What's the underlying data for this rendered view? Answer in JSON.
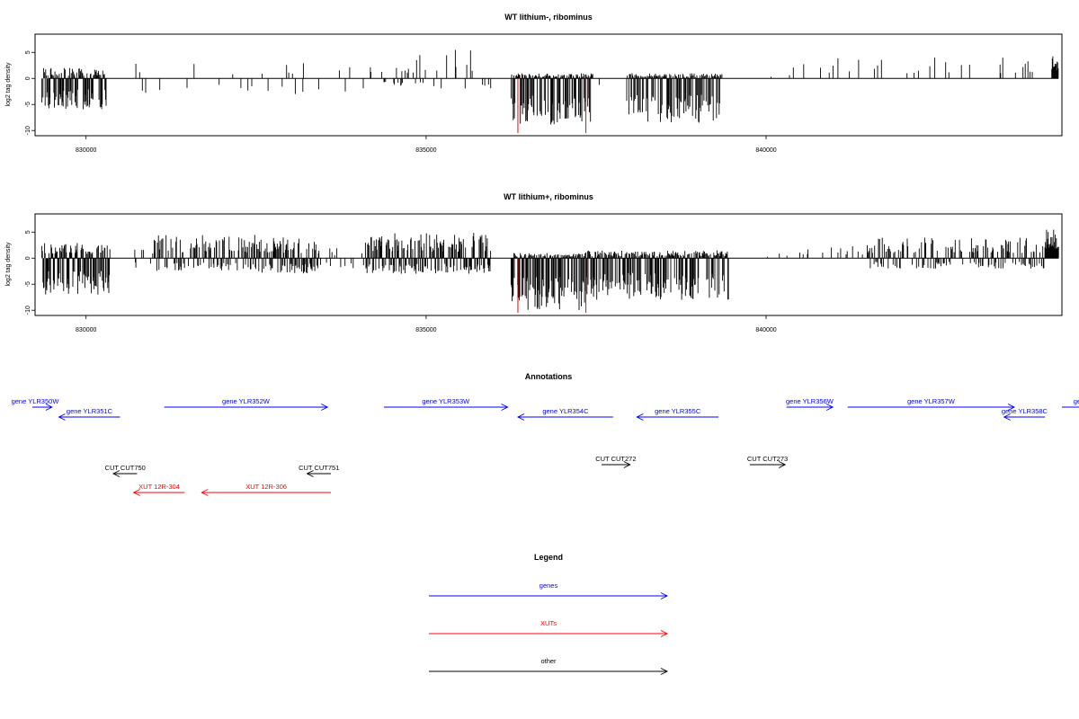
{
  "colors": {
    "genes": "#0000ff",
    "xuts": "#ff0000",
    "other": "#000000",
    "marker": "#ff0000"
  },
  "chart_data": [
    {
      "type": "bar",
      "title": "WT lithium-, ribominus",
      "ylabel": "log2 tag density",
      "xlim": [
        829250,
        844350
      ],
      "ylim": [
        -11,
        8.5
      ],
      "xticks": [
        {
          "v": 830000,
          "t": "830000"
        },
        {
          "v": 835000,
          "t": "835000"
        },
        {
          "v": 840000,
          "t": "840000"
        }
      ],
      "yticks": [
        {
          "v": 5,
          "t": "5"
        },
        {
          "v": 0,
          "t": "0"
        },
        {
          "v": -5,
          "t": "-5"
        },
        {
          "v": -10,
          "t": "-10"
        }
      ],
      "grid": false,
      "markers": [
        836350,
        837350
      ],
      "marker_extent": -10.5,
      "segments": [
        {
          "from": 829350,
          "to": 830300,
          "density": 0.9,
          "pos": 2,
          "neg": 6
        },
        {
          "from": 830700,
          "to": 834200,
          "density": 0.05,
          "pos": 3,
          "neg": 3
        },
        {
          "from": 834300,
          "to": 835150,
          "density": 0.25,
          "pos": 4.5,
          "neg": 1.5
        },
        {
          "from": 835150,
          "to": 835950,
          "density": 0.1,
          "pos": 5.5,
          "neg": 2
        },
        {
          "from": 836250,
          "to": 837450,
          "density": 0.95,
          "pos": 1,
          "neg": 9
        },
        {
          "from": 837450,
          "to": 837900,
          "density": 0.05,
          "pos": 1.5,
          "neg": 2
        },
        {
          "from": 837950,
          "to": 839350,
          "density": 0.9,
          "pos": 1,
          "neg": 8.5
        },
        {
          "from": 839400,
          "to": 840400,
          "density": 0.01,
          "pos": 1,
          "neg": 1
        },
        {
          "from": 840400,
          "to": 843650,
          "density": 0.05,
          "pos": 4,
          "neg": 1
        },
        {
          "from": 843650,
          "to": 844200,
          "density": 0.15,
          "pos": 4,
          "neg": 1
        },
        {
          "from": 844200,
          "to": 844300,
          "density": 1,
          "pos": 6,
          "neg": 0.5
        }
      ]
    },
    {
      "type": "bar",
      "title": "WT lithium+, ribominus",
      "ylabel": "log2 tag density",
      "xlim": [
        829250,
        844350
      ],
      "ylim": [
        -11,
        8.5
      ],
      "xticks": [
        {
          "v": 830000,
          "t": "830000"
        },
        {
          "v": 835000,
          "t": "835000"
        },
        {
          "v": 840000,
          "t": "840000"
        }
      ],
      "yticks": [
        {
          "v": 5,
          "t": "5"
        },
        {
          "v": 0,
          "t": "0"
        },
        {
          "v": -5,
          "t": "-5"
        },
        {
          "v": -10,
          "t": "-10"
        }
      ],
      "grid": false,
      "markers": [
        836350,
        837350
      ],
      "marker_extent": -10.5,
      "segments": [
        {
          "from": 829350,
          "to": 830350,
          "density": 0.95,
          "pos": 3,
          "neg": 7
        },
        {
          "from": 830700,
          "to": 831000,
          "density": 0.2,
          "pos": 2,
          "neg": 2
        },
        {
          "from": 831000,
          "to": 832500,
          "density": 0.6,
          "pos": 4.5,
          "neg": 2.5
        },
        {
          "from": 832500,
          "to": 833400,
          "density": 0.75,
          "pos": 4,
          "neg": 3
        },
        {
          "from": 833400,
          "to": 834100,
          "density": 0.2,
          "pos": 2,
          "neg": 2
        },
        {
          "from": 834100,
          "to": 835950,
          "density": 0.8,
          "pos": 5,
          "neg": 3
        },
        {
          "from": 836250,
          "to": 837350,
          "density": 1,
          "pos": 1,
          "neg": 10
        },
        {
          "from": 837350,
          "to": 839450,
          "density": 0.95,
          "pos": 1.5,
          "neg": 8
        },
        {
          "from": 839450,
          "to": 840400,
          "density": 0.02,
          "pos": 1,
          "neg": 1
        },
        {
          "from": 840400,
          "to": 841500,
          "density": 0.1,
          "pos": 2.5,
          "neg": 1
        },
        {
          "from": 841500,
          "to": 844100,
          "density": 0.45,
          "pos": 4,
          "neg": 2
        },
        {
          "from": 844100,
          "to": 844300,
          "density": 1,
          "pos": 7,
          "neg": 0.5
        }
      ]
    }
  ],
  "annotations": {
    "title": "Annotations",
    "items": [
      {
        "label": "gene YLR350W",
        "kind": "gene",
        "start": 829000,
        "end": 829500,
        "strand": "+",
        "row": 0
      },
      {
        "label": "gene YLR351C",
        "kind": "gene",
        "start": 829600,
        "end": 830500,
        "strand": "-",
        "row": 1
      },
      {
        "label": "gene YLR352W",
        "kind": "gene",
        "start": 831150,
        "end": 833550,
        "strand": "+",
        "row": 0
      },
      {
        "label": "gene YLR353W",
        "kind": "gene",
        "start": 834380,
        "end": 836200,
        "strand": "+",
        "row": 0
      },
      {
        "label": "gene YLR354C",
        "kind": "gene",
        "start": 836350,
        "end": 837750,
        "strand": "-",
        "row": 1
      },
      {
        "label": "gene YLR355C",
        "kind": "gene",
        "start": 838100,
        "end": 839300,
        "strand": "-",
        "row": 1
      },
      {
        "label": "gene YLR356W",
        "kind": "gene",
        "start": 840300,
        "end": 840980,
        "strand": "+",
        "row": 0
      },
      {
        "label": "gene YLR357W",
        "kind": "gene",
        "start": 841200,
        "end": 843650,
        "strand": "+",
        "row": 0
      },
      {
        "label": "gene YLR358C",
        "kind": "gene",
        "start": 843500,
        "end": 844100,
        "strand": "-",
        "row": 1
      },
      {
        "label": "gene Y",
        "kind": "gene",
        "start": 844350,
        "end": 845000,
        "strand": "+",
        "row": 0
      },
      {
        "label": "CUT CUT750",
        "kind": "other",
        "start": 830400,
        "end": 830750,
        "strand": "-",
        "row": 3
      },
      {
        "label": "CUT CUT751",
        "kind": "other",
        "start": 833250,
        "end": 833600,
        "strand": "-",
        "row": 3
      },
      {
        "label": "CUT CUT272",
        "kind": "other",
        "start": 837580,
        "end": 838000,
        "strand": "+",
        "row": 2
      },
      {
        "label": "CUT CUT273",
        "kind": "other",
        "start": 839760,
        "end": 840280,
        "strand": "+",
        "row": 2
      },
      {
        "label": "XUT 12R-304",
        "kind": "xut",
        "start": 830700,
        "end": 831450,
        "strand": "-",
        "row": 4
      },
      {
        "label": "XUT 12R-306",
        "kind": "xut",
        "start": 831700,
        "end": 833600,
        "strand": "-",
        "row": 4
      }
    ]
  },
  "legend": {
    "title": "Legend",
    "items": [
      {
        "label": "genes",
        "kind": "gene"
      },
      {
        "label": "XUTs",
        "kind": "xut"
      },
      {
        "label": "other",
        "kind": "other"
      }
    ]
  }
}
